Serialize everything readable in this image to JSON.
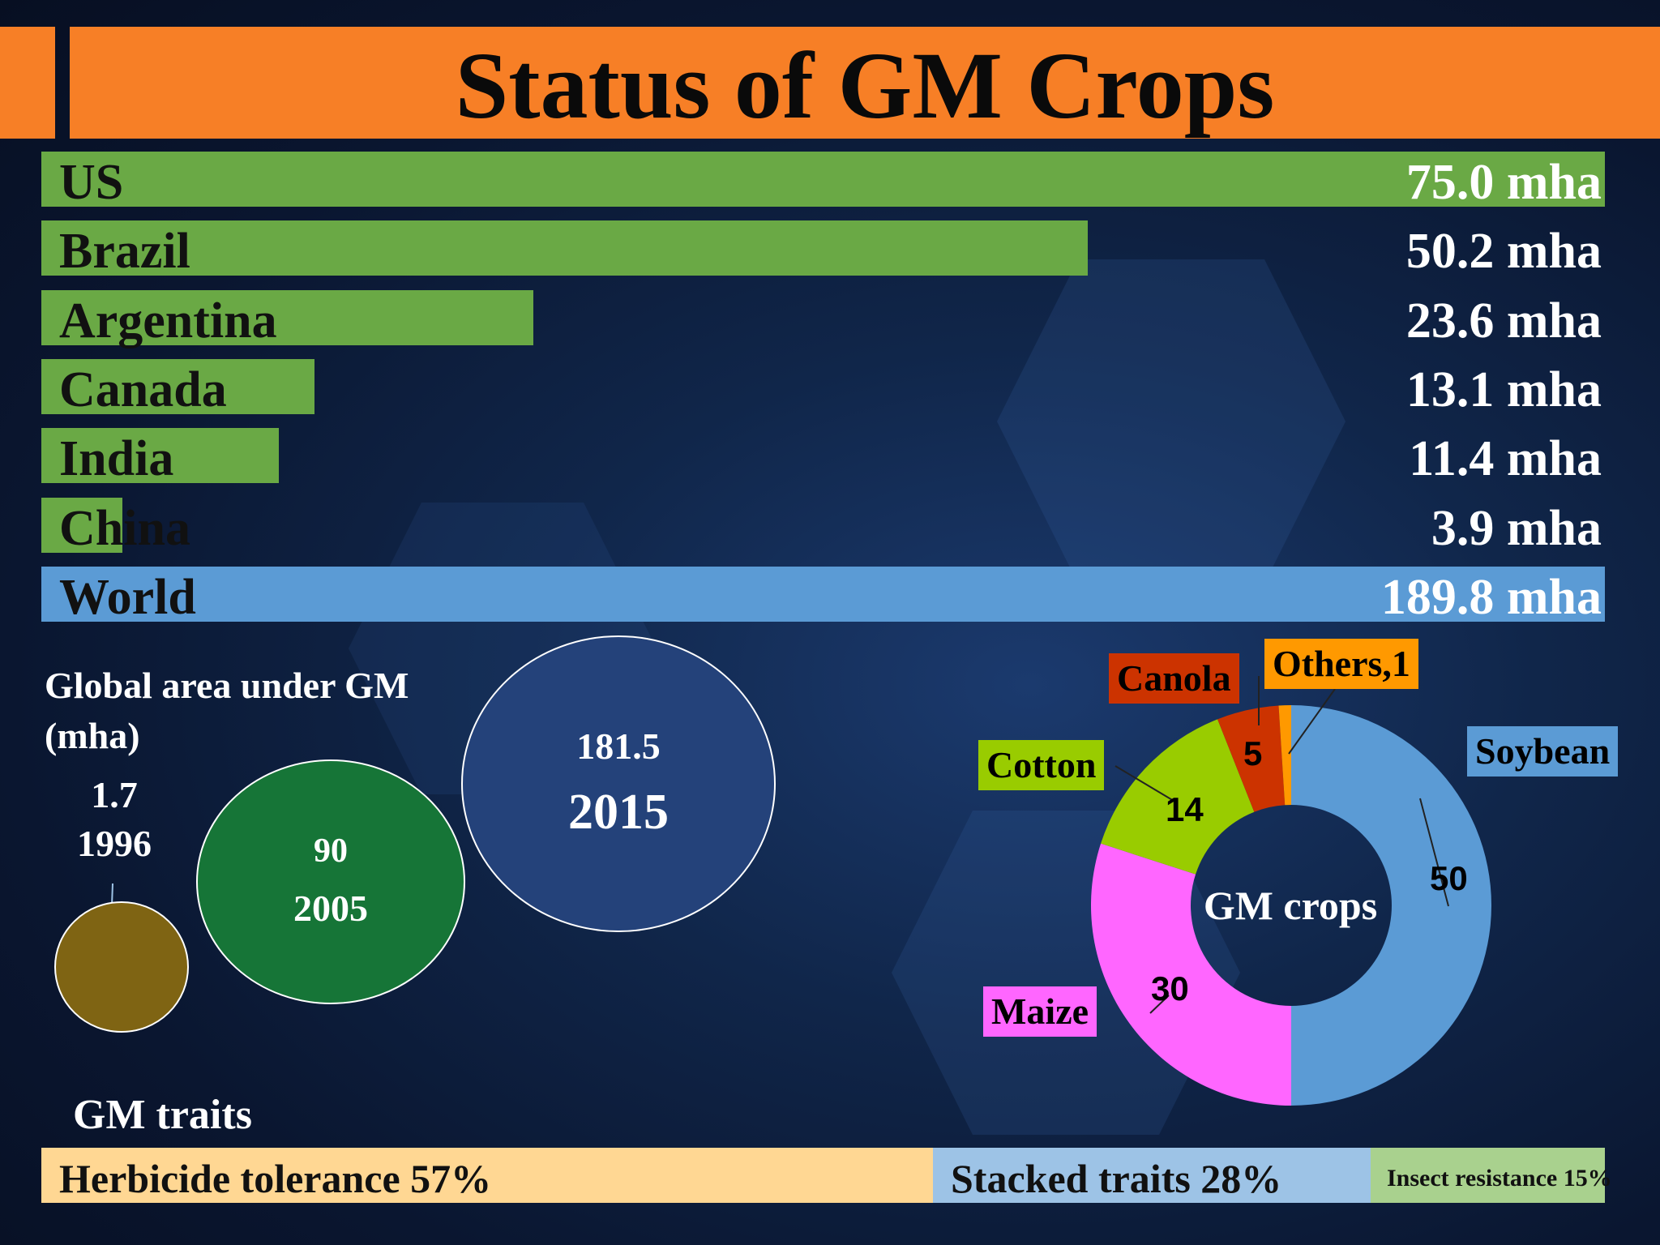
{
  "title": "Status of GM Crops",
  "colors": {
    "title_bar": "#f77f26",
    "country_bar": "#6aa945",
    "world_bar": "#5b9bd5",
    "bubble_1996": "#7f6413",
    "bubble_2005": "#167537",
    "bubble_2015": "#24427a"
  },
  "chart_data": [
    {
      "type": "bar",
      "orientation": "horizontal",
      "categories": [
        "US",
        "Brazil",
        "Argentina",
        "Canada",
        "India",
        "China",
        "World"
      ],
      "values": [
        75.0,
        50.2,
        23.6,
        13.1,
        11.4,
        3.9,
        189.8
      ],
      "value_labels": [
        "75.0 mha",
        "50.2 mha",
        "23.6 mha",
        "13.1 mha",
        "11.4 mha",
        "3.9 mha",
        "189.8 mha"
      ]
    },
    {
      "type": "scatter",
      "subtype": "bubble",
      "title_lines": [
        "Global area  under GM",
        "(mha)"
      ],
      "points": [
        {
          "year": "1996",
          "value": 1.7
        },
        {
          "year": "2005",
          "value": 90
        },
        {
          "year": "2015",
          "value": 181.5
        }
      ]
    },
    {
      "type": "pie",
      "subtype": "donut",
      "center_label": "GM crops",
      "slices": [
        {
          "label": "Soybean",
          "value": 50,
          "value_label": "50",
          "color": "#5b9bd5"
        },
        {
          "label": "Maize",
          "value": 30,
          "value_label": "30",
          "color": "#ff66ff"
        },
        {
          "label": "Cotton",
          "value": 14,
          "value_label": "14",
          "color": "#99cc00"
        },
        {
          "label": "Canola",
          "value": 5,
          "value_label": "5",
          "color": "#cc3300"
        },
        {
          "label": "Others,1",
          "value": 1,
          "value_label": "",
          "color": "#ff9900"
        }
      ]
    },
    {
      "type": "bar",
      "subtype": "stacked-100",
      "title": "GM traits",
      "segments": [
        {
          "label": "Herbicide tolerance 57%",
          "value": 57,
          "color": "#ffd793"
        },
        {
          "label": "Stacked traits 28%",
          "value": 28,
          "color": "#9dc3e6"
        },
        {
          "label": "Insect resistance 15%",
          "value": 15,
          "color": "#a9d18e"
        }
      ]
    }
  ]
}
